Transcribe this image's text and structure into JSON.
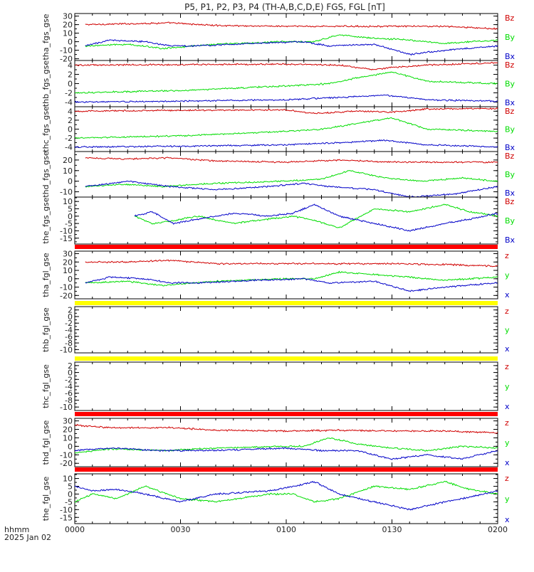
{
  "title": "P5, P1, P2, P3, P4 (TH-A,B,C,D,E) FGS, FGL [nT]",
  "footer": {
    "line1": "hhmm",
    "line2": "2025 Jan 02"
  },
  "x_axis": {
    "ticks": [
      "0000",
      "0030",
      "0100",
      "0130",
      "0200"
    ],
    "range_minutes": [
      0,
      120
    ]
  },
  "colors": {
    "red": "#d00000",
    "green": "#00dd00",
    "blue": "#0000c8",
    "flag_red": "#ff0000",
    "flag_yellow": "#ffff00"
  },
  "chart_data": [
    {
      "type": "line",
      "ylabel": "tha_fgs_gse",
      "ylim": [
        -22,
        33
      ],
      "yticks": [
        30,
        20,
        10,
        0,
        -10,
        -20
      ],
      "legend": [
        "Bz",
        "By",
        "Bx"
      ],
      "flag": null,
      "series": [
        {
          "name": "Bz",
          "color": "red",
          "x": [
            3,
            15,
            27,
            40,
            60,
            75,
            90,
            105,
            120
          ],
          "values": [
            20,
            21,
            22,
            19,
            18,
            18,
            18,
            18,
            15
          ]
        },
        {
          "name": "By",
          "color": "green",
          "x": [
            3,
            15,
            25,
            40,
            60,
            68,
            75,
            85,
            95,
            105,
            120
          ],
          "values": [
            -5,
            -3,
            -8,
            -3,
            0,
            0,
            8,
            4,
            2,
            -2,
            2
          ]
        },
        {
          "name": "Bx",
          "color": "blue",
          "x": [
            3,
            10,
            20,
            27,
            35,
            50,
            65,
            72,
            85,
            95,
            105,
            120
          ],
          "values": [
            -5,
            2,
            0,
            -5,
            -5,
            -2,
            0,
            -5,
            -3,
            -15,
            -10,
            -5
          ]
        }
      ]
    },
    {
      "type": "line",
      "ylabel": "thb_fgs_gse",
      "ylim": [
        -5,
        5
      ],
      "yticks": [
        4,
        2,
        0,
        -2,
        -4
      ],
      "legend": [
        "Bz",
        "By",
        "Bx"
      ],
      "flag": null,
      "series": [
        {
          "name": "Bz",
          "color": "red",
          "x": [
            0,
            30,
            60,
            75,
            85,
            90,
            100,
            120
          ],
          "values": [
            4,
            4.1,
            4.2,
            4,
            3,
            3.5,
            4,
            4.5
          ]
        },
        {
          "name": "By",
          "color": "green",
          "x": [
            0,
            30,
            60,
            72,
            82,
            90,
            100,
            120
          ],
          "values": [
            -2,
            -1.5,
            -0.5,
            0,
            1.5,
            2.5,
            0.5,
            0
          ]
        },
        {
          "name": "Bx",
          "color": "blue",
          "x": [
            0,
            30,
            60,
            75,
            88,
            100,
            120
          ],
          "values": [
            -4,
            -3.8,
            -3.5,
            -3,
            -2.5,
            -3.5,
            -3.8
          ]
        }
      ]
    },
    {
      "type": "line",
      "ylabel": "thc_fgs_gse",
      "ylim": [
        -5,
        5
      ],
      "yticks": [
        4,
        2,
        0,
        -2,
        -4
      ],
      "legend": [
        "Bz",
        "By",
        "Bx"
      ],
      "flag": null,
      "series": [
        {
          "name": "Bz",
          "color": "red",
          "x": [
            0,
            30,
            60,
            68,
            80,
            90,
            100,
            120
          ],
          "values": [
            4,
            4.2,
            4.3,
            3.5,
            4.0,
            3.8,
            4.5,
            4.6
          ]
        },
        {
          "name": "By",
          "color": "green",
          "x": [
            0,
            30,
            60,
            70,
            82,
            90,
            100,
            120
          ],
          "values": [
            -2,
            -1.5,
            -0.5,
            0,
            1.5,
            2.5,
            0,
            -0.5
          ]
        },
        {
          "name": "Bx",
          "color": "blue",
          "x": [
            0,
            30,
            60,
            75,
            88,
            100,
            120
          ],
          "values": [
            -4,
            -3.8,
            -3.5,
            -3,
            -2.5,
            -3.5,
            -4
          ]
        }
      ]
    },
    {
      "type": "line",
      "ylabel": "thd_fgs_gse",
      "ylim": [
        -15,
        28
      ],
      "yticks": [
        20,
        10,
        0,
        -10
      ],
      "legend": [
        "Bz",
        "By",
        "Bx"
      ],
      "flag": null,
      "series": [
        {
          "name": "Bz",
          "color": "red",
          "x": [
            3,
            15,
            27,
            40,
            60,
            75,
            90,
            105,
            120
          ],
          "values": [
            22,
            21,
            22,
            19,
            18,
            20,
            18,
            18,
            18
          ]
        },
        {
          "name": "By",
          "color": "green",
          "x": [
            3,
            15,
            25,
            40,
            60,
            70,
            78,
            88,
            98,
            110,
            120
          ],
          "values": [
            -5,
            -3,
            -5,
            -2,
            0,
            2,
            10,
            3,
            0,
            3,
            0
          ]
        },
        {
          "name": "Bx",
          "color": "blue",
          "x": [
            3,
            15,
            27,
            40,
            55,
            65,
            72,
            85,
            95,
            108,
            120
          ],
          "values": [
            -5,
            0,
            -5,
            -8,
            -5,
            -2,
            -5,
            -8,
            -15,
            -12,
            -5
          ]
        }
      ]
    },
    {
      "type": "line",
      "ylabel": "the_fgs_gse",
      "ylim": [
        -19,
        13
      ],
      "yticks": [
        10,
        5,
        0,
        -5,
        -10,
        -15
      ],
      "legend": [
        "Bz",
        "By",
        "Bx"
      ],
      "flag": "red",
      "series": [
        {
          "name": "Bz",
          "color": "red",
          "x": [],
          "values": []
        },
        {
          "name": "By",
          "color": "green",
          "x": [
            17,
            22,
            28,
            35,
            45,
            55,
            62,
            68,
            75,
            85,
            95,
            105,
            112,
            120
          ],
          "values": [
            0,
            -5,
            -3,
            0,
            -5,
            -2,
            0,
            -3,
            -8,
            5,
            3,
            8,
            3,
            0
          ]
        },
        {
          "name": "Bx",
          "color": "blue",
          "x": [
            17,
            22,
            28,
            35,
            45,
            55,
            62,
            68,
            75,
            85,
            95,
            105,
            112,
            120
          ],
          "values": [
            0,
            3,
            -5,
            -2,
            2,
            0,
            2,
            8,
            0,
            -5,
            -10,
            -5,
            -2,
            2
          ]
        }
      ]
    },
    {
      "type": "line",
      "ylabel": "tha_fgl_gse",
      "ylim": [
        -24,
        33
      ],
      "yticks": [
        30,
        20,
        10,
        0,
        -10,
        -20
      ],
      "legend": [
        "z",
        "y",
        "x"
      ],
      "flag": "yellow",
      "series": [
        {
          "name": "z",
          "color": "red",
          "x": [
            3,
            15,
            27,
            40,
            60,
            75,
            90,
            105,
            120
          ],
          "values": [
            20,
            20,
            22,
            18,
            18,
            18,
            18,
            17,
            15
          ]
        },
        {
          "name": "y",
          "color": "green",
          "x": [
            3,
            15,
            25,
            40,
            60,
            68,
            75,
            85,
            95,
            105,
            120
          ],
          "values": [
            -5,
            -3,
            -8,
            -3,
            0,
            0,
            8,
            5,
            2,
            -2,
            2
          ]
        },
        {
          "name": "x",
          "color": "blue",
          "x": [
            3,
            10,
            20,
            27,
            35,
            50,
            65,
            72,
            85,
            95,
            105,
            120
          ],
          "values": [
            -5,
            2,
            0,
            -5,
            -5,
            -2,
            0,
            -5,
            -3,
            -15,
            -10,
            -5
          ]
        }
      ]
    },
    {
      "type": "line",
      "ylabel": "thb_fgl_gse",
      "ylim": [
        -11,
        3
      ],
      "yticks": [
        2,
        0,
        -2,
        -4,
        -6,
        -8,
        -10
      ],
      "legend": [
        "z",
        "y",
        "x"
      ],
      "flag": "yellow",
      "series": []
    },
    {
      "type": "line",
      "ylabel": "thc_fgl_gse",
      "ylim": [
        -11,
        3
      ],
      "yticks": [
        2,
        0,
        -2,
        -4,
        -6,
        -8,
        -10
      ],
      "legend": [
        "z",
        "y",
        "x"
      ],
      "flag": "red",
      "series": []
    },
    {
      "type": "line",
      "ylabel": "thd_fgl_gse",
      "ylim": [
        -24,
        33
      ],
      "yticks": [
        30,
        20,
        10,
        0,
        -10,
        -20
      ],
      "legend": [
        "z",
        "y",
        "x"
      ],
      "flag": "red",
      "series": [
        {
          "name": "z",
          "color": "red",
          "x": [
            0,
            10,
            27,
            40,
            60,
            75,
            90,
            105,
            120
          ],
          "values": [
            25,
            22,
            22,
            19,
            18,
            19,
            18,
            18,
            16
          ]
        },
        {
          "name": "y",
          "color": "green",
          "x": [
            0,
            10,
            25,
            40,
            60,
            65,
            72,
            80,
            90,
            100,
            110,
            120
          ],
          "values": [
            -8,
            -3,
            -5,
            -2,
            0,
            0,
            10,
            3,
            -2,
            -5,
            0,
            -2
          ]
        },
        {
          "name": "x",
          "color": "blue",
          "x": [
            0,
            10,
            25,
            40,
            60,
            70,
            80,
            90,
            100,
            110,
            120
          ],
          "values": [
            -5,
            -2,
            -5,
            -5,
            -2,
            -5,
            -5,
            -15,
            -10,
            -15,
            -5
          ]
        }
      ]
    },
    {
      "type": "line",
      "ylabel": "the_fgl_gse",
      "ylim": [
        -19,
        13
      ],
      "yticks": [
        10,
        5,
        0,
        -5,
        -10,
        -15
      ],
      "legend": [
        "z",
        "y",
        "x"
      ],
      "flag": null,
      "series": [
        {
          "name": "z",
          "color": "red",
          "x": [],
          "values": []
        },
        {
          "name": "y",
          "color": "green",
          "x": [
            0,
            5,
            12,
            20,
            30,
            40,
            55,
            62,
            68,
            75,
            85,
            95,
            105,
            112,
            120
          ],
          "values": [
            -5,
            0,
            -3,
            5,
            -3,
            -5,
            0,
            0,
            -5,
            -3,
            5,
            3,
            8,
            3,
            0
          ]
        },
        {
          "name": "x",
          "color": "blue",
          "x": [
            0,
            5,
            12,
            20,
            30,
            40,
            55,
            62,
            68,
            75,
            85,
            95,
            105,
            112,
            120
          ],
          "values": [
            5,
            2,
            3,
            0,
            -5,
            0,
            2,
            5,
            8,
            0,
            -5,
            -10,
            -5,
            -2,
            2
          ]
        }
      ]
    }
  ]
}
